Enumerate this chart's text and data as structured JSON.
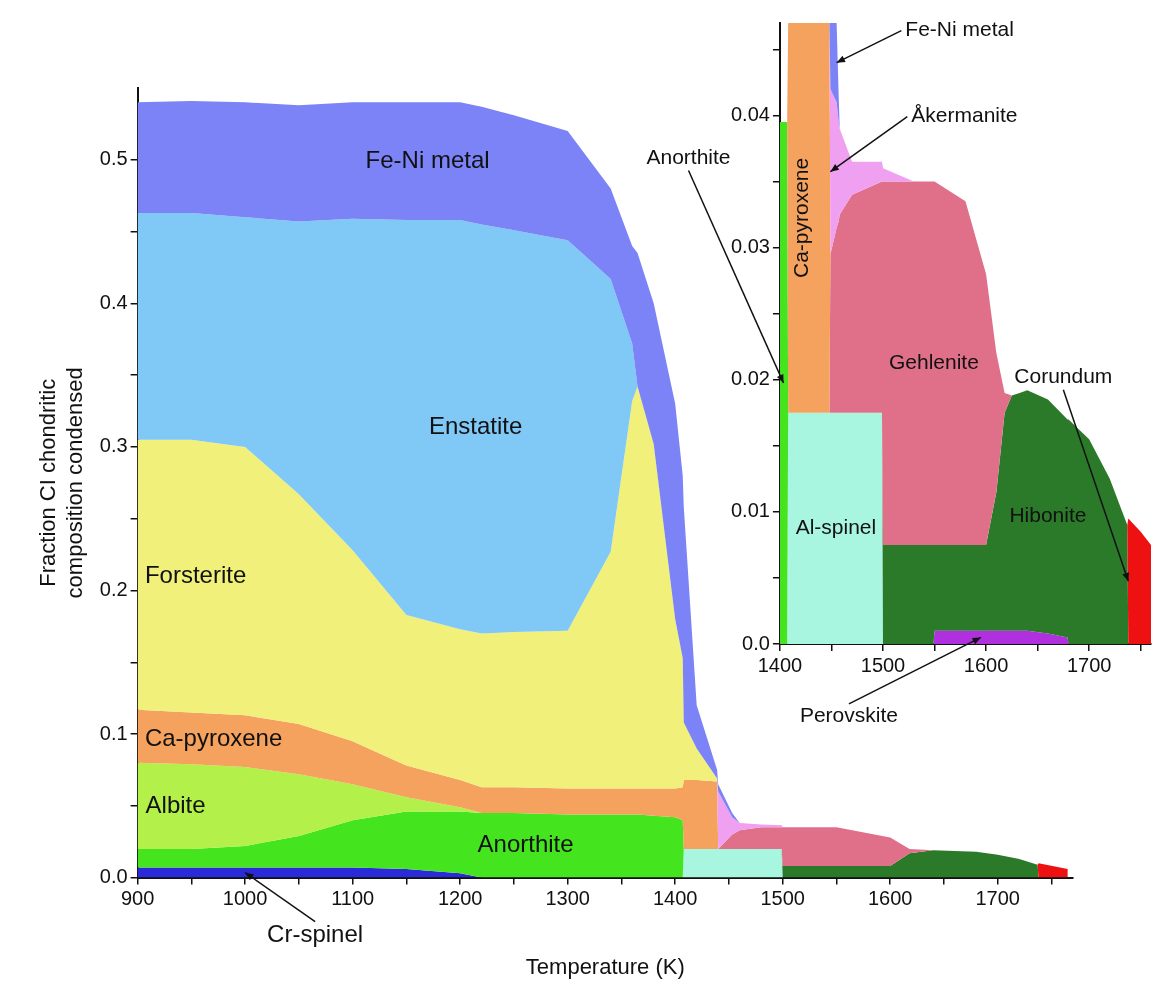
{
  "chart_data": [
    {
      "type": "area",
      "stacked": true,
      "xlabel": "Temperature (K)",
      "ylabel": "Fraction CI chondritic composition condensed",
      "x": [
        900,
        950,
        1000,
        1050,
        1100,
        1150,
        1200,
        1220,
        1250,
        1300,
        1340,
        1360,
        1365,
        1380,
        1400,
        1407,
        1408,
        1420,
        1439,
        1440,
        1453,
        1460,
        1480,
        1499,
        1500,
        1550,
        1600,
        1618,
        1640,
        1680,
        1700,
        1720,
        1737,
        1738,
        1765
      ],
      "xlim": [
        900,
        1770
      ],
      "ylim": [
        0,
        0.55
      ],
      "xticks": [
        900,
        {
          "value": 950,
          "label": null
        },
        1000,
        {
          "value": 1050,
          "label": null
        },
        1100,
        {
          "value": 1150,
          "label": null
        },
        1200,
        {
          "value": 1250,
          "label": null
        },
        1300,
        {
          "value": 1350,
          "label": null
        },
        1400,
        {
          "value": 1450,
          "label": null
        },
        1500,
        {
          "value": 1550,
          "label": null
        },
        1600,
        {
          "value": 1650,
          "label": null
        },
        1700,
        {
          "value": 1750,
          "label": null
        }
      ],
      "yticks": [
        {
          "value": 0,
          "label": "0.0"
        },
        {
          "value": 0.05,
          "label": null
        },
        0.1,
        {
          "value": 0.15,
          "label": null
        },
        0.2,
        {
          "value": 0.25,
          "label": null
        },
        0.3,
        {
          "value": 0.35,
          "label": null
        },
        0.4,
        {
          "value": 0.45,
          "label": null
        },
        0.5
      ],
      "series": [
        {
          "name": "Cr-spinel",
          "color": "#2a2ad8",
          "values": [
            0.007,
            0.007,
            0.007,
            0.007,
            0.007,
            0.006,
            0.003,
            0,
            null,
            null,
            null,
            null,
            null,
            null,
            null,
            null,
            null,
            null,
            null,
            null,
            null,
            null,
            null,
            null,
            null,
            null,
            null,
            null,
            null,
            null,
            null,
            null,
            null,
            null,
            null
          ]
        },
        {
          "color": "#a8f5e0",
          "values": [
            null,
            null,
            null,
            null,
            null,
            null,
            null,
            null,
            null,
            null,
            null,
            null,
            null,
            null,
            null,
            0,
            0.02,
            0.02,
            0.02,
            0.02,
            0.02,
            0.02,
            0.02,
            0.02,
            0,
            null,
            null,
            null,
            null,
            null,
            null,
            null,
            null,
            null,
            null
          ]
        },
        {
          "color": "#2a7a2a",
          "values": [
            null,
            null,
            null,
            null,
            null,
            null,
            null,
            null,
            null,
            null,
            null,
            null,
            null,
            null,
            null,
            null,
            null,
            null,
            null,
            null,
            null,
            null,
            null,
            0,
            0.008,
            0.008,
            0.008,
            0.017,
            0.019,
            0.018,
            0.016,
            0.013,
            0.009,
            0,
            null
          ]
        },
        {
          "color": "#ee1111",
          "values": [
            null,
            null,
            null,
            null,
            null,
            null,
            null,
            null,
            null,
            null,
            null,
            null,
            null,
            null,
            null,
            null,
            null,
            null,
            null,
            null,
            null,
            null,
            null,
            null,
            null,
            null,
            null,
            null,
            null,
            null,
            null,
            null,
            0,
            0.01,
            0.006
          ]
        },
        {
          "name": "Anorthite",
          "color": "#44e51e",
          "values": [
            0.013,
            0.013,
            0.015,
            0.022,
            0.033,
            0.04,
            0.043,
            0.045,
            0.045,
            0.044,
            0.044,
            0.044,
            0.044,
            0.043,
            0.042,
            0.04,
            0,
            null,
            null,
            null,
            null,
            null,
            null,
            null,
            null,
            null,
            null,
            null,
            null,
            null,
            null,
            null,
            null,
            null,
            null
          ]
        },
        {
          "name": "Albite",
          "color": "#b4f04a",
          "values": [
            0.06,
            0.059,
            0.055,
            0.043,
            0.025,
            0.01,
            0.003,
            0,
            null,
            null,
            null,
            null,
            null,
            null,
            null,
            null,
            null,
            null,
            null,
            null,
            null,
            null,
            null,
            null,
            null,
            null,
            null,
            null,
            null,
            null,
            null,
            null,
            null,
            null,
            null
          ]
        },
        {
          "color": "#e0708a",
          "values": [
            null,
            null,
            null,
            null,
            null,
            null,
            null,
            null,
            null,
            null,
            null,
            null,
            null,
            null,
            null,
            null,
            null,
            null,
            null,
            0,
            0.01,
            0.013,
            0.015,
            0.015,
            0.027,
            0.027,
            0.02,
            0.003,
            0,
            null,
            null,
            null,
            null,
            null,
            null
          ]
        },
        {
          "name": "Ca-pyroxene",
          "color": "#f5a25f",
          "values": [
            0.037,
            0.036,
            0.036,
            0.035,
            0.03,
            0.022,
            0.019,
            0.018,
            0.018,
            0.018,
            0.018,
            0.018,
            0.018,
            0.019,
            0.02,
            0.023,
            0.048,
            0.048,
            0.047,
            0,
            null,
            null,
            null,
            null,
            null,
            null,
            null,
            null,
            null,
            null,
            null,
            null,
            null,
            null,
            null
          ]
        },
        {
          "color": "#f0a0f0",
          "values": [
            null,
            null,
            null,
            null,
            null,
            null,
            null,
            null,
            null,
            null,
            null,
            null,
            null,
            null,
            null,
            null,
            null,
            null,
            0,
            0.04,
            0.012,
            0.005,
            0.002,
            0.0015,
            0,
            null,
            null,
            null,
            null,
            null,
            null,
            null,
            null,
            null,
            null
          ]
        },
        {
          "name": "Forsterite",
          "color": "#f0f07a",
          "values": [
            0.188,
            0.19,
            0.187,
            0.16,
            0.133,
            0.105,
            0.105,
            0.107,
            0.108,
            0.11,
            0.165,
            0.27,
            0.28,
            0.24,
            0.118,
            0.09,
            0.04,
            0.022,
            0.002,
            0,
            null,
            null,
            null,
            null,
            null,
            null,
            null,
            null,
            null,
            null,
            null,
            null,
            null,
            null,
            null
          ]
        },
        {
          "name": "Enstatite",
          "color": "#80c8f5",
          "values": [
            0.158,
            0.158,
            0.16,
            0.19,
            0.231,
            0.275,
            0.285,
            0.285,
            0.28,
            0.272,
            0.19,
            0.04,
            0,
            null,
            null,
            null,
            null,
            null,
            null,
            null,
            null,
            null,
            null,
            null,
            null,
            null,
            null,
            null,
            null,
            null,
            null,
            null,
            null,
            null,
            null
          ]
        },
        {
          "name": "Fe-Ni metal",
          "color": "#7b83f7",
          "values": [
            0.077,
            0.078,
            0.08,
            0.081,
            0.081,
            0.082,
            0.082,
            0.082,
            0.08,
            0.076,
            0.063,
            0.068,
            0.093,
            0.098,
            0.15,
            0.127,
            0.15,
            0.03,
            0.006,
            0.005,
            0.003,
            0,
            null,
            null,
            null,
            null,
            null,
            null,
            null,
            null,
            null,
            null,
            null,
            null,
            null
          ]
        }
      ]
    },
    {
      "type": "area",
      "stacked": true,
      "x": [
        1400,
        1407,
        1408,
        1430,
        1448,
        1449,
        1455,
        1457,
        1458,
        1470,
        1499,
        1500,
        1530,
        1549,
        1550,
        1580,
        1600,
        1610,
        1618,
        1625,
        1640,
        1660,
        1679,
        1680,
        1700,
        1720,
        1737,
        1738,
        1750,
        1760
      ],
      "xlim": [
        1400,
        1760
      ],
      "ylim": [
        0,
        0.047
      ],
      "xticks": [
        1400,
        {
          "value": 1450,
          "label": null
        },
        1500,
        {
          "value": 1550,
          "label": null
        },
        1600,
        {
          "value": 1650,
          "label": null
        },
        1700,
        {
          "value": 1750,
          "label": null
        }
      ],
      "yticks": [
        {
          "value": 0,
          "label": "0.0"
        },
        {
          "value": 0.005,
          "label": null
        },
        0.01,
        {
          "value": 0.015,
          "label": null
        },
        0.02,
        {
          "value": 0.025,
          "label": null
        },
        0.03,
        {
          "value": 0.035,
          "label": null
        },
        0.04,
        {
          "value": 0.045,
          "label": null
        }
      ],
      "series": [
        {
          "name": "Perovskite",
          "color": "#b030e0",
          "values": [
            null,
            null,
            null,
            null,
            null,
            null,
            null,
            null,
            null,
            null,
            null,
            null,
            null,
            0,
            0.001,
            0.001,
            0.001,
            0.001,
            0.001,
            0.001,
            0.001,
            0.0008,
            0.0005,
            0,
            null,
            null,
            null,
            null,
            null,
            null
          ]
        },
        {
          "name": "Al-spinel",
          "color": "#a8f5e0",
          "values": [
            null,
            0,
            0.0175,
            0.0175,
            0.0175,
            0.0175,
            0.0175,
            0.0175,
            0.0175,
            0.0175,
            0.0175,
            0,
            null,
            null,
            null,
            null,
            null,
            null,
            null,
            null,
            null,
            null,
            null,
            null,
            null,
            null,
            null,
            null,
            null,
            null
          ]
        },
        {
          "name": "Hibonite",
          "color": "#2a7a2a",
          "values": [
            null,
            null,
            null,
            null,
            null,
            null,
            null,
            null,
            null,
            null,
            0,
            0.0075,
            0.0075,
            0.0075,
            0.0065,
            0.0065,
            0.0065,
            0.0105,
            0.0165,
            0.0178,
            0.0182,
            0.0177,
            0.0165,
            0.017,
            0.0155,
            0.0125,
            0.009,
            0,
            null,
            null
          ]
        },
        {
          "name": "Corundum",
          "color": "#ee1111",
          "values": [
            null,
            null,
            null,
            null,
            null,
            null,
            null,
            null,
            null,
            null,
            null,
            null,
            null,
            null,
            null,
            null,
            null,
            null,
            null,
            null,
            null,
            null,
            null,
            null,
            null,
            null,
            0,
            0.0095,
            0.0085,
            0.0075
          ]
        },
        {
          "name": "Anorthite",
          "color": "#44e51e",
          "values": [
            0.0395,
            0.0395,
            0,
            null,
            null,
            null,
            null,
            null,
            null,
            null,
            null,
            null,
            null,
            null,
            null,
            null,
            null,
            null,
            null,
            null,
            null,
            null,
            null,
            null,
            null,
            null,
            null,
            null,
            null,
            null
          ]
        },
        {
          "name": "Gehlenite",
          "color": "#e0708a",
          "values": [
            null,
            null,
            null,
            null,
            0,
            0.012,
            0.014,
            0.0145,
            0.015,
            0.0165,
            0.0175,
            0.0275,
            0.0275,
            0.0275,
            0.0275,
            0.026,
            0.0205,
            0.0105,
            0.0015,
            0,
            null,
            null,
            null,
            null,
            null,
            null,
            null,
            null,
            null,
            null
          ]
        },
        {
          "name": "Ca-pyroxene",
          "color": "#f5a25f",
          "values": [
            null,
            0,
            0.0295,
            0.0295,
            0.0295,
            0,
            null,
            null,
            null,
            null,
            null,
            null,
            null,
            null,
            null,
            null,
            null,
            null,
            null,
            null,
            null,
            null,
            null,
            null,
            null,
            null,
            null,
            null,
            null,
            null
          ]
        },
        {
          "name": "Åkermanite",
          "color": "#f0a0f0",
          "values": [
            null,
            null,
            null,
            null,
            0,
            0.0125,
            0.0095,
            0.0075,
            0.0065,
            0.0025,
            0.0015,
            0.001,
            0,
            null,
            null,
            null,
            null,
            null,
            null,
            null,
            null,
            null,
            null,
            null,
            null,
            null,
            null,
            null,
            null,
            null
          ]
        },
        {
          "name": "Fe-Ni metal",
          "color": "#7b83f7",
          "values": [
            null,
            null,
            null,
            null,
            0,
            0.005,
            0.006,
            0.002,
            0,
            null,
            null,
            null,
            null,
            null,
            null,
            null,
            null,
            null,
            null,
            null,
            null,
            null,
            null,
            null,
            null,
            null,
            null,
            null,
            null,
            null
          ]
        }
      ]
    }
  ]
}
